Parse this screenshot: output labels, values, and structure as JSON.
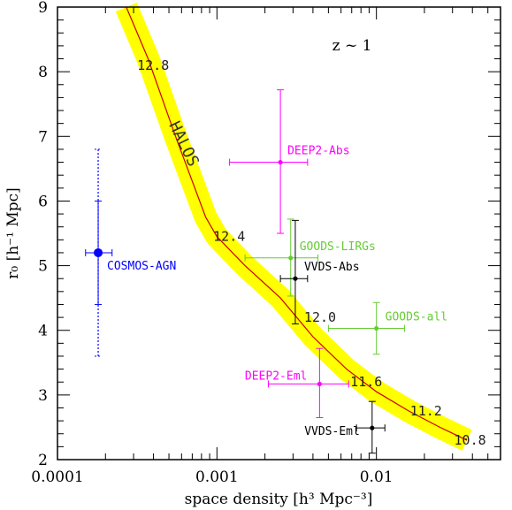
{
  "chart_data": {
    "type": "scatter",
    "title": "z ~ 1",
    "xlabel": "space density [h³ Mpc⁻³]",
    "ylabel": "r₀ [h⁻¹ Mpc]",
    "xscale": "log",
    "xlim": [
      0.0001,
      0.06
    ],
    "ylim": [
      2,
      9
    ],
    "x_ticks": [
      {
        "value": 0.0001,
        "label": "0.0001"
      },
      {
        "value": 0.001,
        "label": "0.001"
      },
      {
        "value": 0.01,
        "label": "0.01"
      }
    ],
    "y_ticks": [
      2,
      3,
      4,
      5,
      6,
      7,
      8,
      9
    ],
    "halo_curve": {
      "label": "HALOS",
      "band_color": "#ffff00",
      "line_color": "#cc0000",
      "points": [
        {
          "x": 0.00027,
          "y": 9.0
        },
        {
          "x": 0.00037,
          "y": 8.2
        },
        {
          "x": 0.00055,
          "y": 7.0
        },
        {
          "x": 0.00085,
          "y": 5.75
        },
        {
          "x": 0.001,
          "y": 5.45
        },
        {
          "x": 0.0015,
          "y": 5.0
        },
        {
          "x": 0.0025,
          "y": 4.5
        },
        {
          "x": 0.004,
          "y": 3.9
        },
        {
          "x": 0.0065,
          "y": 3.4
        },
        {
          "x": 0.01,
          "y": 3.05
        },
        {
          "x": 0.016,
          "y": 2.75
        },
        {
          "x": 0.025,
          "y": 2.5
        },
        {
          "x": 0.037,
          "y": 2.3
        }
      ],
      "mass_labels": [
        {
          "text": "12.8",
          "x": 0.00035,
          "y": 8.1
        },
        {
          "text": "12.4",
          "x": 0.00105,
          "y": 5.45
        },
        {
          "text": "12.0",
          "x": 0.0039,
          "y": 4.2
        },
        {
          "text": "11.6",
          "x": 0.0076,
          "y": 3.2
        },
        {
          "text": "11.2",
          "x": 0.018,
          "y": 2.75
        },
        {
          "text": "10.8",
          "x": 0.034,
          "y": 2.3
        }
      ]
    },
    "series": [
      {
        "name": "COSMOS-AGN",
        "color": "#0000ff",
        "x": 0.00018,
        "y": 5.2,
        "xerr": [
          0.00015,
          0.00022
        ],
        "yerr": [
          4.4,
          6.0
        ],
        "yerr_outer": [
          3.6,
          6.8
        ],
        "big": true
      },
      {
        "name": "DEEP2-Abs",
        "color": "#ff00ff",
        "x": 0.0025,
        "y": 6.6,
        "xerr": [
          0.0012,
          0.0037
        ],
        "yerr": [
          5.5,
          7.72
        ]
      },
      {
        "name": "GOODS-LIRGs",
        "color": "#66cc33",
        "x": 0.0029,
        "y": 5.12,
        "xerr": [
          0.0015,
          0.0043
        ],
        "yerr": [
          4.53,
          5.72
        ]
      },
      {
        "name": "VVDS-Abs",
        "color": "#000000",
        "x": 0.0031,
        "y": 4.8,
        "xerr": [
          0.0025,
          0.0037
        ],
        "yerr": [
          4.1,
          5.7
        ]
      },
      {
        "name": "GOODS-all",
        "color": "#66cc33",
        "x": 0.01,
        "y": 4.03,
        "xerr": [
          0.005,
          0.015
        ],
        "yerr": [
          3.63,
          4.43
        ]
      },
      {
        "name": "DEEP2-Eml",
        "color": "#ff00ff",
        "x": 0.0044,
        "y": 3.17,
        "xerr": [
          0.0021,
          0.0067
        ],
        "yerr": [
          2.65,
          3.72
        ]
      },
      {
        "name": "VVDS-Eml",
        "color": "#000000",
        "x": 0.0094,
        "y": 2.49,
        "xerr": [
          0.0075,
          0.0113
        ],
        "yerr": [
          2.1,
          2.9
        ]
      }
    ]
  }
}
